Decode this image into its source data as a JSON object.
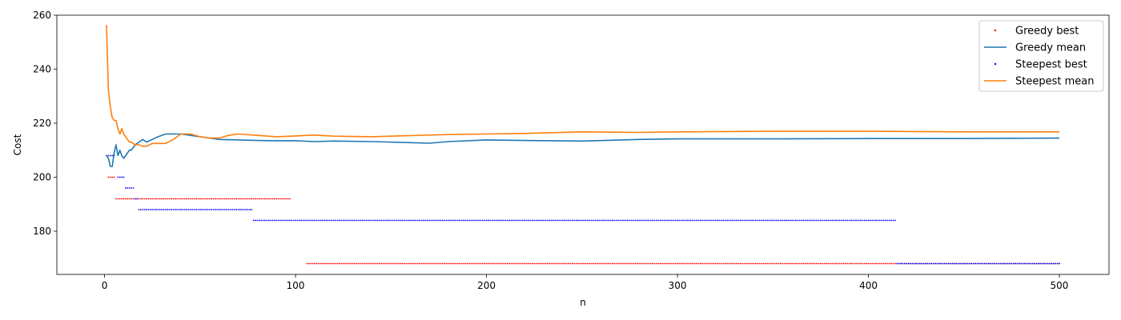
{
  "chart_data": {
    "type": "line",
    "title": "",
    "xlabel": "n",
    "ylabel": "Cost",
    "xlim": [
      -25,
      526
    ],
    "ylim": [
      164,
      260
    ],
    "xticks": [
      0,
      100,
      200,
      300,
      400,
      500
    ],
    "yticks": [
      180,
      200,
      220,
      240,
      260
    ],
    "grid": false,
    "legend_position": "top-right",
    "series": [
      {
        "name": "Greedy best",
        "style": "dots",
        "color": "#ff0000",
        "segments": [
          {
            "x_from": 1,
            "x_to": 1,
            "y": 256
          },
          {
            "x_from": 2,
            "x_to": 5,
            "y": 200
          },
          {
            "x_from": 6,
            "x_to": 97,
            "y": 192
          },
          {
            "x_from": 106,
            "x_to": 500,
            "y": 168
          }
        ]
      },
      {
        "name": "Greedy mean",
        "style": "line",
        "color": "#1f77b4",
        "x": [
          1,
          2,
          3,
          4,
          5,
          6,
          7,
          8,
          9,
          10,
          11,
          12,
          13,
          14,
          15,
          16,
          18,
          20,
          22,
          25,
          28,
          32,
          36,
          40,
          45,
          50,
          55,
          60,
          70,
          80,
          90,
          100,
          110,
          120,
          140,
          160,
          170,
          180,
          200,
          220,
          250,
          280,
          300,
          350,
          400,
          450,
          500
        ],
        "y": [
          208,
          207,
          204,
          204,
          209,
          212,
          208,
          210,
          208,
          207,
          208,
          209,
          210,
          210,
          211,
          212,
          213,
          214,
          213,
          214,
          215,
          216,
          216,
          216,
          215.5,
          215,
          214.5,
          214,
          213.8,
          213.6,
          213.5,
          213.5,
          213.2,
          213.4,
          213.2,
          212.8,
          212.6,
          213.2,
          213.8,
          213.6,
          213.4,
          214,
          214.2,
          214.2,
          214.3,
          214.3,
          214.5
        ]
      },
      {
        "name": "Steepest best",
        "style": "dots",
        "color": "#0000ff",
        "segments": [
          {
            "x_from": 1,
            "x_to": 5,
            "y": 208
          },
          {
            "x_from": 7,
            "x_to": 10,
            "y": 200
          },
          {
            "x_from": 11,
            "x_to": 15,
            "y": 196
          },
          {
            "x_from": 16,
            "x_to": 17,
            "y": 192
          },
          {
            "x_from": 18,
            "x_to": 77,
            "y": 188
          },
          {
            "x_from": 78,
            "x_to": 414,
            "y": 184
          },
          {
            "x_from": 415,
            "x_to": 500,
            "y": 168
          }
        ]
      },
      {
        "name": "Steepest mean",
        "style": "line",
        "color": "#ff7f0e",
        "x": [
          1,
          2,
          3,
          4,
          5,
          6,
          7,
          8,
          9,
          10,
          11,
          12,
          13,
          14,
          15,
          16,
          18,
          20,
          22,
          25,
          28,
          32,
          36,
          40,
          45,
          50,
          55,
          60,
          65,
          70,
          80,
          90,
          100,
          110,
          120,
          140,
          160,
          180,
          200,
          220,
          250,
          280,
          300,
          350,
          400,
          450,
          500
        ],
        "y": [
          256,
          232,
          226,
          222,
          221,
          221,
          218,
          216,
          218,
          216,
          215,
          214,
          213,
          213,
          212.5,
          212,
          212,
          211.5,
          211.5,
          212.5,
          212.5,
          212.5,
          214,
          216,
          216,
          215,
          214.5,
          214.5,
          215.5,
          216,
          215.5,
          215,
          215.3,
          215.6,
          215.2,
          215,
          215.4,
          215.8,
          216,
          216.2,
          216.8,
          216.6,
          216.8,
          217,
          217,
          216.8,
          216.8
        ]
      }
    ]
  }
}
